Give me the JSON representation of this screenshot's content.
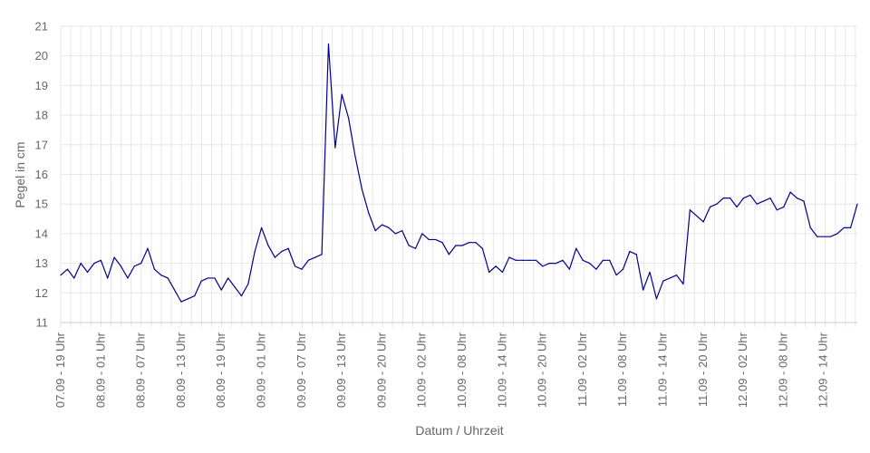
{
  "chart_data": {
    "type": "line",
    "xlabel": "Datum / Uhrzeit",
    "ylabel": "Pegel in cm",
    "ylim": [
      11,
      21
    ],
    "yticks": [
      11,
      12,
      13,
      14,
      15,
      16,
      17,
      18,
      19,
      20,
      21
    ],
    "grid": true,
    "x_tick_labels": [
      "07.09 - 19 Uhr",
      "08.09 - 01 Uhr",
      "08.09 - 07 Uhr",
      "08.09 - 13 Uhr",
      "08.09 - 19 Uhr",
      "09.09 - 01 Uhr",
      "09.09 - 07 Uhr",
      "09.09 - 13 Uhr",
      "09.09 - 20 Uhr",
      "10.09 - 02 Uhr",
      "10.09 - 08 Uhr",
      "10.09 - 14 Uhr",
      "10.09 - 20 Uhr",
      "11.09 - 02 Uhr",
      "11.09 - 08 Uhr",
      "11.09 - 14 Uhr",
      "11.09 - 20 Uhr",
      "12.09 - 02 Uhr",
      "12.09 - 08 Uhr",
      "12.09 - 14 Uhr"
    ],
    "series": [
      {
        "color": "#00008b",
        "values": [
          12.6,
          12.8,
          12.5,
          13.0,
          12.7,
          13.0,
          13.1,
          12.5,
          13.2,
          12.9,
          12.5,
          12.9,
          13.0,
          13.5,
          12.8,
          12.6,
          12.5,
          12.1,
          11.7,
          11.8,
          11.9,
          12.4,
          12.5,
          12.5,
          12.1,
          12.5,
          12.2,
          11.9,
          12.3,
          13.4,
          14.2,
          13.6,
          13.2,
          13.4,
          13.5,
          12.9,
          12.8,
          13.1,
          13.2,
          13.3,
          20.4,
          16.9,
          18.7,
          17.9,
          16.6,
          15.5,
          14.7,
          14.1,
          14.3,
          14.2,
          14.0,
          14.1,
          13.6,
          13.5,
          14.0,
          13.8,
          13.8,
          13.7,
          13.3,
          13.6,
          13.6,
          13.7,
          13.7,
          13.5,
          12.7,
          12.9,
          12.7,
          13.2,
          13.1,
          13.1,
          13.1,
          13.1,
          12.9,
          13.0,
          13.0,
          13.1,
          12.8,
          13.5,
          13.1,
          13.0,
          12.8,
          13.1,
          13.1,
          12.6,
          12.8,
          13.4,
          13.3,
          12.1,
          12.7,
          11.8,
          12.4,
          12.5,
          12.6,
          12.3,
          14.8,
          14.6,
          14.4,
          14.9,
          15.0,
          15.2,
          15.2,
          14.9,
          15.2,
          15.3,
          15.0,
          15.1,
          15.2,
          14.8,
          14.9,
          15.4,
          15.2,
          15.1,
          14.2,
          13.9,
          13.9,
          13.9,
          14.0,
          14.2,
          14.2,
          15.0
        ]
      }
    ]
  }
}
